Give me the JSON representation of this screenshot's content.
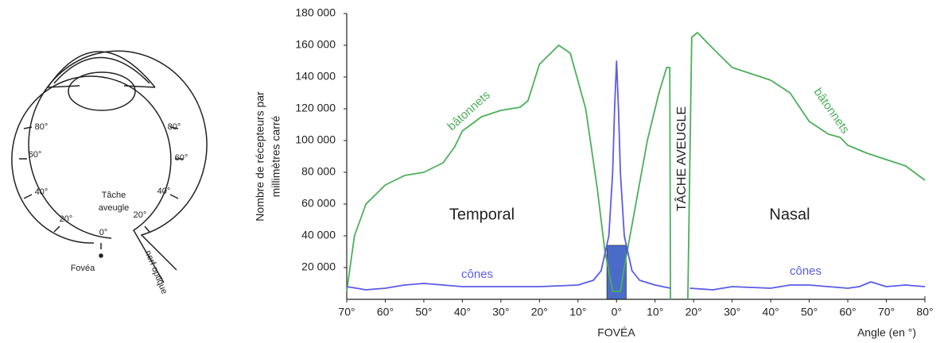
{
  "eye_diagram": {
    "labels": [
      "80°",
      "60°",
      "40°",
      "20°",
      "0°",
      "Tâche",
      "aveugle",
      "20°",
      "40°",
      "60°",
      "80°",
      "Fovéa",
      "nerf optique"
    ]
  },
  "chart_data": {
    "type": "line",
    "ylabel": [
      "Nombre de récepteurs par",
      "millimètres carré"
    ],
    "xlabel": "Angle (en °)",
    "annotations": [
      "Temporal",
      "Nasal",
      "TÂCHE AVEUGLE",
      "FOVÉA"
    ],
    "xlim": [
      -70,
      80
    ],
    "ylim": [
      0,
      180000
    ],
    "xticks": [
      {
        "value": -70,
        "label": "70°"
      },
      {
        "value": -60,
        "label": "60°"
      },
      {
        "value": -50,
        "label": "50°"
      },
      {
        "value": -40,
        "label": "40°"
      },
      {
        "value": -30,
        "label": "30°"
      },
      {
        "value": -20,
        "label": "20°"
      },
      {
        "value": -10,
        "label": "10°"
      },
      {
        "value": 0,
        "label": "0°"
      },
      {
        "value": 10,
        "label": "10°"
      },
      {
        "value": 20,
        "label": "20°"
      },
      {
        "value": 30,
        "label": "30°"
      },
      {
        "value": 40,
        "label": "40°"
      },
      {
        "value": 50,
        "label": "50°"
      },
      {
        "value": 60,
        "label": "60°"
      },
      {
        "value": 70,
        "label": "70°"
      },
      {
        "value": 80,
        "label": "80°"
      }
    ],
    "yticks": [
      {
        "value": 20000,
        "label": "20 000"
      },
      {
        "value": 40000,
        "label": "40 000"
      },
      {
        "value": 60000,
        "label": "60 000"
      },
      {
        "value": 80000,
        "label": "80 000"
      },
      {
        "value": 100000,
        "label": "100 000"
      },
      {
        "value": 120000,
        "label": "120 000"
      },
      {
        "value": 140000,
        "label": "140 000"
      },
      {
        "value": 160000,
        "label": "160 000"
      },
      {
        "value": 180000,
        "label": "180 000"
      }
    ],
    "highlight": {
      "xlim": [
        -2.5,
        2.5
      ],
      "ymax": 34000,
      "color": "#4a6cc8"
    },
    "series": [
      {
        "name": "bâtonnets",
        "color": "#4caf5a",
        "x": [
          -70,
          -68,
          -65,
          -60,
          -55,
          -50,
          -45,
          -42,
          -40,
          -35,
          -30,
          -25,
          -23,
          -20,
          -15,
          -12,
          -8,
          -5,
          -3,
          -1,
          1,
          2,
          5,
          8,
          11,
          13,
          13.8,
          14,
          16,
          18.5,
          19.5,
          21,
          25,
          30,
          40,
          45,
          50,
          55,
          58,
          60,
          65,
          70,
          75,
          80
        ],
        "values": [
          5000,
          40000,
          60000,
          72000,
          78000,
          80000,
          86000,
          96000,
          106000,
          115000,
          119000,
          121000,
          125000,
          148000,
          160000,
          155000,
          120000,
          70000,
          30000,
          5000,
          5000,
          20000,
          60000,
          100000,
          130000,
          146000,
          146000,
          0,
          null,
          0,
          165000,
          168000,
          158000,
          146000,
          138000,
          130000,
          112000,
          104000,
          102000,
          97000,
          92000,
          88000,
          84000,
          75000
        ]
      },
      {
        "name": "cônes",
        "color": "#5b5be8",
        "x": [
          -70,
          -65,
          -60,
          -55,
          -50,
          -45,
          -40,
          -30,
          -20,
          -10,
          -6,
          -4,
          -2,
          -1,
          -0.5,
          0,
          0.5,
          1,
          2,
          4,
          6,
          10,
          14,
          16,
          19,
          25,
          30,
          40,
          45,
          50,
          55,
          60,
          63,
          66,
          70,
          75,
          80
        ],
        "values": [
          8000,
          6000,
          7000,
          9000,
          10000,
          9000,
          8000,
          8000,
          8000,
          9000,
          12000,
          18000,
          40000,
          80000,
          120000,
          150000,
          120000,
          80000,
          40000,
          18000,
          12000,
          9000,
          7000,
          null,
          7000,
          6000,
          8000,
          7000,
          9000,
          9000,
          8000,
          7000,
          8000,
          11000,
          8000,
          9000,
          8000
        ]
      }
    ]
  }
}
